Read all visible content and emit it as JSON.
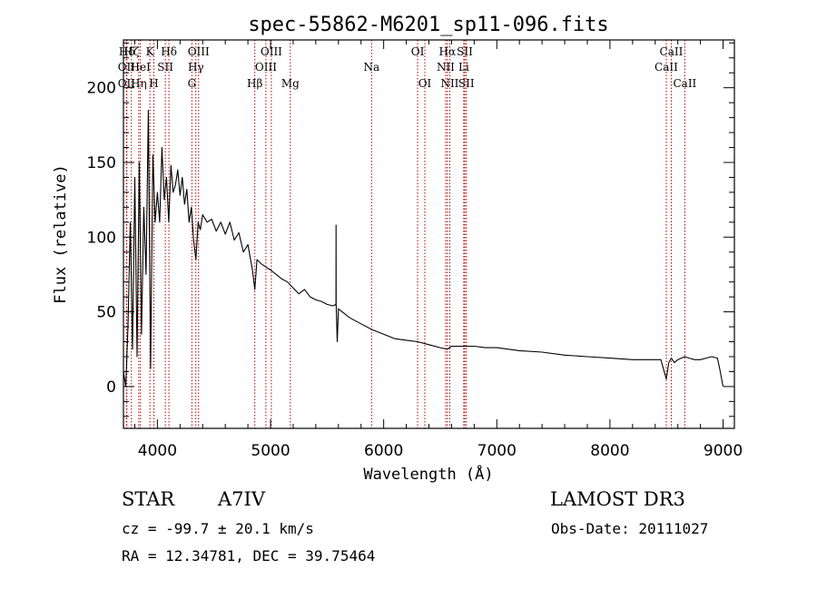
{
  "chart_data": {
    "type": "line",
    "title": "spec-55862-M6201_sp11-096.fits",
    "xlabel": "Wavelength (Å)",
    "ylabel": "Flux (relative)",
    "xlim": [
      3700,
      9100
    ],
    "ylim": [
      -28,
      232
    ],
    "xticks": [
      4000,
      5000,
      6000,
      7000,
      8000,
      9000
    ],
    "yticks": [
      0,
      50,
      100,
      150,
      200
    ],
    "x_minor_step": 200,
    "y_minor_step": 10,
    "series": [
      {
        "name": "spectrum",
        "color": "#000000",
        "x": [
          3700,
          3720,
          3740,
          3760,
          3780,
          3800,
          3820,
          3840,
          3860,
          3880,
          3900,
          3920,
          3940,
          3960,
          3980,
          4000,
          4020,
          4040,
          4060,
          4080,
          4100,
          4120,
          4140,
          4160,
          4180,
          4200,
          4220,
          4240,
          4260,
          4280,
          4300,
          4320,
          4340,
          4360,
          4380,
          4400,
          4440,
          4480,
          4520,
          4560,
          4600,
          4640,
          4680,
          4720,
          4760,
          4800,
          4840,
          4861,
          4880,
          4920,
          4960,
          5000,
          5050,
          5100,
          5150,
          5200,
          5250,
          5300,
          5350,
          5400,
          5450,
          5500,
          5550,
          5578,
          5579,
          5580,
          5590,
          5600,
          5650,
          5700,
          5800,
          5900,
          6000,
          6100,
          6200,
          6300,
          6400,
          6500,
          6563,
          6600,
          6700,
          6800,
          6900,
          7000,
          7200,
          7400,
          7600,
          7800,
          8000,
          8200,
          8400,
          8450,
          8498,
          8520,
          8542,
          8570,
          8600,
          8662,
          8700,
          8750,
          8800,
          8850,
          8900,
          8950,
          8970,
          9000
        ],
        "y": [
          10,
          0,
          40,
          110,
          25,
          140,
          20,
          150,
          35,
          120,
          75,
          185,
          12,
          155,
          110,
          130,
          110,
          160,
          125,
          140,
          110,
          148,
          130,
          135,
          145,
          128,
          140,
          122,
          132,
          110,
          120,
          98,
          85,
          110,
          105,
          115,
          110,
          112,
          104,
          110,
          102,
          110,
          98,
          103,
          90,
          95,
          78,
          65,
          85,
          82,
          80,
          78,
          75,
          72,
          70,
          66,
          62,
          65,
          60,
          58,
          57,
          55,
          54,
          55,
          108,
          55,
          30,
          52,
          49,
          46,
          42,
          38,
          35,
          32,
          31,
          30,
          28,
          26,
          25,
          27,
          27,
          27,
          26,
          26,
          24,
          23,
          21,
          20,
          19,
          18,
          18,
          18,
          5,
          16,
          19,
          16,
          18,
          20,
          19,
          18,
          18,
          19,
          20,
          19,
          12,
          0
        ]
      }
    ],
    "line_labels": [
      {
        "label": "Hδ",
        "x": 3730,
        "row": 1,
        "color": "#b00000"
      },
      {
        "label": "OII",
        "x": 3727,
        "row": 2,
        "color": "#b00000"
      },
      {
        "label": "OII",
        "x": 3727,
        "row": 3,
        "color": "#b00000"
      },
      {
        "label": "Hζ",
        "x": 3770,
        "row": 1,
        "color": "#b00000"
      },
      {
        "label": "HeI",
        "x": 3850,
        "row": 2,
        "color": "#b00000"
      },
      {
        "label": "Hη",
        "x": 3835,
        "row": 3,
        "color": "#b00000"
      },
      {
        "label": "K",
        "x": 3934,
        "row": 1,
        "color": "#b00000"
      },
      {
        "label": "H",
        "x": 3969,
        "row": 3,
        "color": "#b00000"
      },
      {
        "label": "SII",
        "x": 4070,
        "row": 2,
        "color": "#b00000"
      },
      {
        "label": "Hδ",
        "x": 4102,
        "row": 1,
        "color": "#b00000"
      },
      {
        "label": "OIII",
        "x": 4364,
        "row": 1,
        "color": "#b00000"
      },
      {
        "label": "Hγ",
        "x": 4340,
        "row": 2,
        "color": "#b00000"
      },
      {
        "label": "G",
        "x": 4305,
        "row": 3,
        "color": "#b00000"
      },
      {
        "label": "Hβ",
        "x": 4861,
        "row": 3,
        "color": "#b00000"
      },
      {
        "label": "OIII",
        "x": 5007,
        "row": 1,
        "color": "#b00000"
      },
      {
        "label": "OIII",
        "x": 4959,
        "row": 2,
        "color": "#b00000"
      },
      {
        "label": "Mg",
        "x": 5175,
        "row": 3,
        "color": "#b00000"
      },
      {
        "label": "Na",
        "x": 5893,
        "row": 2,
        "color": "#b00000"
      },
      {
        "label": "OI",
        "x": 6300,
        "row": 1,
        "color": "#b00000"
      },
      {
        "label": "OI",
        "x": 6364,
        "row": 3,
        "color": "#b00000"
      },
      {
        "label": "Hα",
        "x": 6563,
        "row": 1,
        "color": "#b00000"
      },
      {
        "label": "NII",
        "x": 6548,
        "row": 2,
        "color": "#b00000"
      },
      {
        "label": "NII",
        "x": 6584,
        "row": 3,
        "color": "#b00000"
      },
      {
        "label": "SII",
        "x": 6717,
        "row": 1,
        "color": "#b00000"
      },
      {
        "label": "Li",
        "x": 6708,
        "row": 2,
        "color": "#b00000"
      },
      {
        "label": "SII",
        "x": 6731,
        "row": 3,
        "color": "#b00000"
      },
      {
        "label": "CaII",
        "x": 8542,
        "row": 1,
        "color": "#b00000"
      },
      {
        "label": "CaII",
        "x": 8498,
        "row": 2,
        "color": "#b00000"
      },
      {
        "label": "CaII",
        "x": 8662,
        "row": 3,
        "color": "#b00000"
      }
    ]
  },
  "info": {
    "object_class": "STAR",
    "subclass": "A7IV",
    "survey": "LAMOST DR3",
    "redshift": "cz = -99.7 ± 20.1 km/s",
    "obs_date": "Obs-Date: 20111027",
    "coords": "RA =  12.34781, DEC =  39.75464"
  }
}
